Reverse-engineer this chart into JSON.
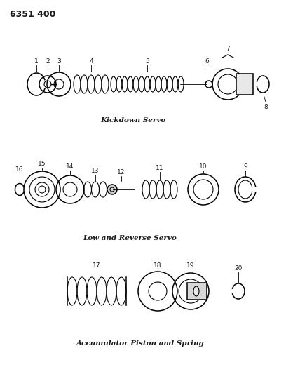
{
  "title_code": "6351 400",
  "section1_label": "Kickdown Servo",
  "section2_label": "Low and Reverse Servo",
  "section3_label": "Accumulator Piston and Spring",
  "bg_color": "#ffffff",
  "line_color": "#1a1a1a",
  "title_fontsize": 9,
  "label_fontsize": 6.5,
  "italic_label_fontsize": 7.5,
  "s1y": 115,
  "s2y": 260,
  "s3y": 400,
  "figw": 4.08,
  "figh": 5.33,
  "dpi": 100
}
